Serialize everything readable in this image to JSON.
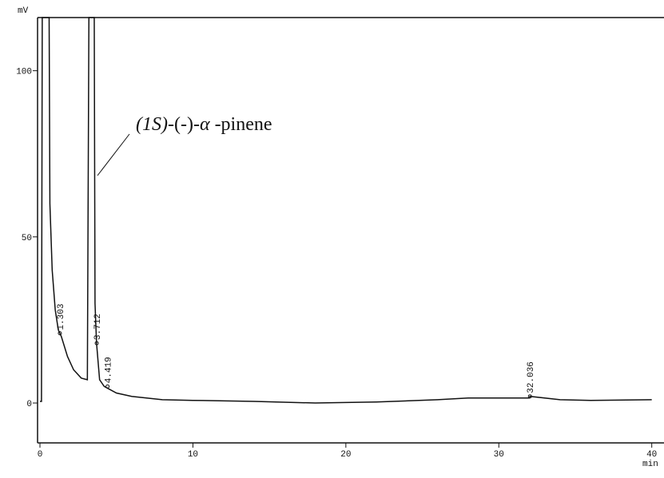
{
  "chart_data": {
    "type": "line",
    "y_label": "mV",
    "x_label": "min",
    "x": [
      0,
      0.1,
      0.15,
      0.6,
      0.65,
      0.8,
      1.0,
      1.2,
      1.4,
      1.8,
      2.2,
      2.7,
      3.1,
      3.2,
      3.55,
      3.6,
      3.7,
      3.9,
      4.2,
      4.4,
      5,
      6,
      8,
      10,
      14,
      18,
      22,
      26,
      28,
      30,
      32,
      32.036,
      34,
      36,
      40
    ],
    "series": [
      {
        "color": "#111111",
        "values": [
          0.5,
          0.5,
          116,
          116,
          60,
          40,
          28,
          22,
          20,
          14,
          10,
          7.5,
          7,
          116,
          116,
          30,
          18,
          7,
          5,
          4.5,
          3,
          2,
          1,
          0.8,
          0.5,
          0,
          0.3,
          1,
          1.5,
          1.5,
          1.5,
          2,
          1,
          0.8,
          1
        ]
      }
    ],
    "peak_times": [
      1.303,
      3.712,
      4.419,
      32.036
    ],
    "peak_values": [
      21,
      18,
      5,
      2
    ],
    "annotation": [
      "(1S)",
      "-(-)-",
      "α",
      " -pinene"
    ],
    "xlim": [
      0,
      40.8
    ],
    "ylim": [
      -12,
      116
    ],
    "xticks": [
      0,
      10,
      20,
      30,
      40
    ],
    "yticks": [
      0,
      50,
      100
    ]
  }
}
